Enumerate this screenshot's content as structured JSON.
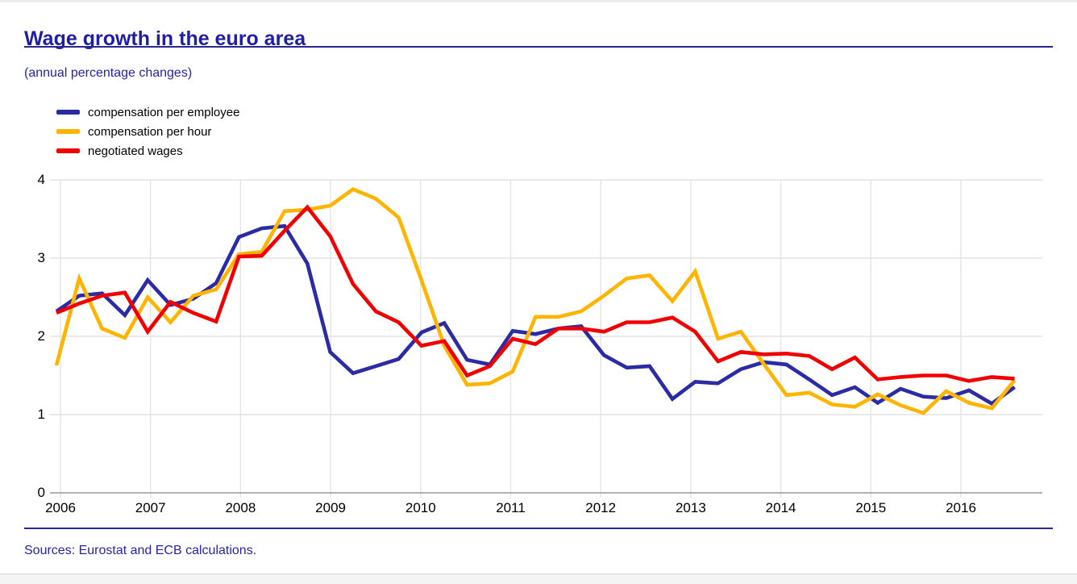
{
  "page": {
    "title": "Wage growth in the euro area",
    "subtitle": "(annual percentage changes)",
    "source_note": "Sources: Eurostat and ECB calculations."
  },
  "colors": {
    "heading_blue": "#1f1fa6",
    "rule_navy": "#28288e",
    "grid_gray": "#e4e4e4",
    "axis_gray": "#999999"
  },
  "chart_data": {
    "type": "line",
    "title": "Wage growth in the euro area",
    "subtitle": "(annual percentage changes)",
    "x_unit": "quarterly",
    "x_start": "2006-Q1",
    "x_end": "2016-Q3",
    "x_tick_labels": [
      "2006",
      "2007",
      "2008",
      "2009",
      "2010",
      "2011",
      "2012",
      "2013",
      "2014",
      "2015",
      "2016"
    ],
    "y_ticks": [
      0,
      1,
      2,
      3,
      4
    ],
    "ylim": [
      0,
      4
    ],
    "grid": true,
    "legend_position": "top-left",
    "series": [
      {
        "name": "compensation per employee",
        "color": "#2b2ba3",
        "values": [
          2.32,
          2.52,
          2.55,
          2.27,
          2.72,
          2.4,
          2.48,
          2.68,
          3.27,
          3.38,
          3.41,
          2.93,
          1.8,
          1.53,
          1.62,
          1.71,
          2.05,
          2.17,
          1.7,
          1.64,
          2.07,
          2.03,
          2.1,
          2.13,
          1.76,
          1.6,
          1.62,
          1.2,
          1.42,
          1.4,
          1.58,
          1.67,
          1.64,
          1.45,
          1.25,
          1.35,
          1.15,
          1.33,
          1.23,
          1.21,
          1.31,
          1.14,
          1.35
        ]
      },
      {
        "name": "compensation per hour",
        "color": "#ffb400",
        "values": [
          1.63,
          2.74,
          2.1,
          1.98,
          2.5,
          2.18,
          2.52,
          2.6,
          3.05,
          3.08,
          3.6,
          3.62,
          3.67,
          3.88,
          3.76,
          3.52,
          2.72,
          1.88,
          1.38,
          1.4,
          1.55,
          2.25,
          2.25,
          2.32,
          2.52,
          2.74,
          2.78,
          2.45,
          2.83,
          1.97,
          2.06,
          1.65,
          1.25,
          1.28,
          1.13,
          1.1,
          1.26,
          1.12,
          1.02,
          1.3,
          1.15,
          1.08,
          1.44
        ]
      },
      {
        "name": "negotiated wages",
        "color": "#f20000",
        "values": [
          2.3,
          2.42,
          2.52,
          2.56,
          2.06,
          2.44,
          2.3,
          2.19,
          3.02,
          3.03,
          3.35,
          3.65,
          3.28,
          2.67,
          2.32,
          2.18,
          1.88,
          1.94,
          1.5,
          1.62,
          1.97,
          1.9,
          2.1,
          2.1,
          2.06,
          2.18,
          2.18,
          2.24,
          2.06,
          1.68,
          1.8,
          1.77,
          1.78,
          1.75,
          1.58,
          1.73,
          1.45,
          1.48,
          1.5,
          1.5,
          1.43,
          1.48,
          1.46
        ]
      }
    ]
  }
}
